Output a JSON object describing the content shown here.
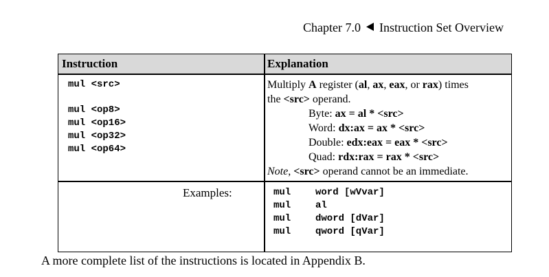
{
  "header": {
    "chapter": "Chapter 7.0",
    "title": "Instruction Set Overview"
  },
  "table": {
    "col_instruction": "Instruction",
    "col_explanation": "Explanation",
    "syntax_main": "mul <src>",
    "syntax_variants": [
      "mul <op8>",
      "mul <op16>",
      "mul <op32>",
      "mul <op64>"
    ],
    "explanation": {
      "line1_a": "Multiply ",
      "line1_b": "A",
      "line1_c": " register (",
      "line1_d": "al",
      "line1_e": ", ",
      "line1_f": "ax",
      "line1_g": ", ",
      "line1_h": "eax",
      "line1_i": ", or ",
      "line1_j": "rax",
      "line1_k": ") times",
      "line2_a": "the ",
      "line2_b": "<src>",
      "line2_c": " operand.",
      "byte_label": "Byte:  ",
      "byte_expr": "ax = al * <src>",
      "word_label": "Word:  ",
      "word_expr": "dx:ax = ax * <src>",
      "double_label": "Double:  ",
      "double_expr": "edx:eax = eax * <src>",
      "quad_label": "Quad:  ",
      "quad_expr": "rdx:rax = rax * <src>",
      "note_a": "Note",
      "note_b": ", ",
      "note_c": "<src>",
      "note_d": " operand cannot be an immediate."
    },
    "examples_label": "Examples:",
    "examples": [
      {
        "op": "mul",
        "arg": "word [wVvar]"
      },
      {
        "op": "mul",
        "arg": "al"
      },
      {
        "op": "mul",
        "arg": "dword [dVar]"
      },
      {
        "op": "mul",
        "arg": "qword [qVar]"
      }
    ]
  },
  "footer": "A more complete list of the instructions is located in Appendix B."
}
